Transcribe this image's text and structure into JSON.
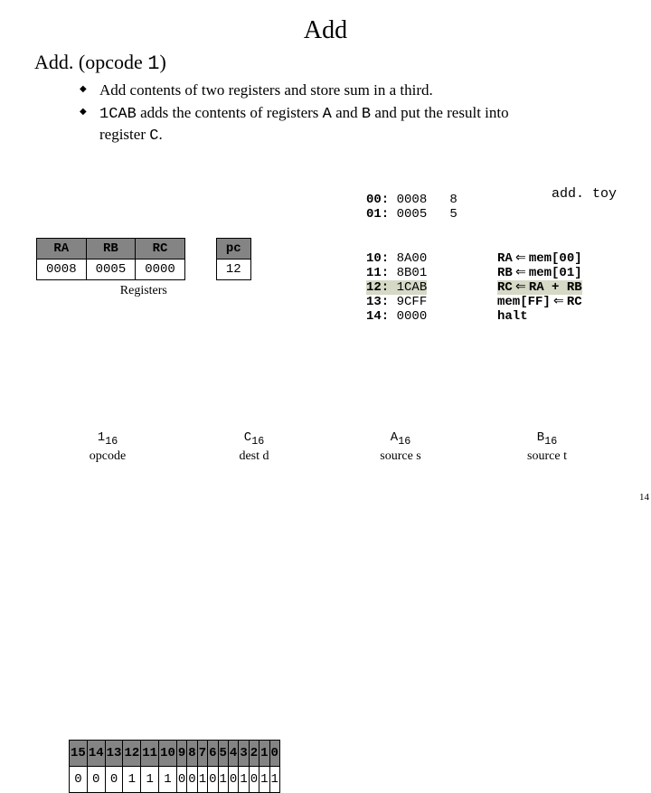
{
  "title": "Add",
  "subtitle_plain_prefix": "Add.  (opcode ",
  "subtitle_plain_suffix": ")",
  "subtitle_code": "1",
  "bullet1": "Add contents of two registers and store sum in a third.",
  "bullet2_pre": "",
  "bullet2_code1": "1CAB",
  "bullet2_mid1": " adds the contents of registers ",
  "bullet2_code2": "A",
  "bullet2_mid2": " and ",
  "bullet2_code3": "B",
  "bullet2_mid3": "  and put the result into register ",
  "bullet2_code4": "C",
  "bullet2_suffix": ".",
  "float_label": "add. toy",
  "mem_top": [
    {
      "addr": "00:",
      "val": "0008",
      "note": "8"
    },
    {
      "addr": "01:",
      "val": "0005",
      "note": "5"
    }
  ],
  "mem_bot": [
    {
      "addr": "10:",
      "val": "8A00",
      "hl": false
    },
    {
      "addr": "11:",
      "val": "8B01",
      "hl": false
    },
    {
      "addr": "12:",
      "val": "1CAB",
      "hl": true
    },
    {
      "addr": "13:",
      "val": "9CFF",
      "hl": false
    },
    {
      "addr": "14:",
      "val": "0000",
      "hl": false
    }
  ],
  "regs": {
    "headers": [
      "RA",
      "RB",
      "RC"
    ],
    "values": [
      "0008",
      "0005",
      "0000"
    ],
    "pc_header": "pc",
    "pc_value": "12",
    "caption": "Registers"
  },
  "mapping": [
    {
      "lhs": "RA",
      "rhs": "mem[00]",
      "hl": false
    },
    {
      "lhs": "RB",
      "rhs": "mem[01]",
      "hl": false
    },
    {
      "lhs": "RC",
      "rhs": "RA + RB",
      "hl": true
    },
    {
      "lhs": "mem[FF]",
      "rhs": "RC",
      "hl": false
    },
    {
      "lhs": "halt",
      "rhs": "",
      "hl": false
    }
  ],
  "bits": {
    "index": [
      "15",
      "14",
      "13",
      "12",
      "11",
      "10",
      "9",
      "8",
      "7",
      "6",
      "5",
      "4",
      "3",
      "2",
      "1",
      "0"
    ],
    "value": [
      "0",
      "0",
      "0",
      "1",
      "1",
      "1",
      "0",
      "0",
      "1",
      "0",
      "1",
      "0",
      "1",
      "0",
      "1",
      "1"
    ]
  },
  "groups": [
    {
      "hex": "1",
      "sub": "16",
      "label": "opcode"
    },
    {
      "hex": "C",
      "sub": "16",
      "label": "dest d"
    },
    {
      "hex": "A",
      "sub": "16",
      "label": "source s"
    },
    {
      "hex": "B",
      "sub": "16",
      "label": "source t"
    }
  ],
  "pagenum": "14",
  "colors": {
    "hdr_bg": "#848484",
    "hl_bg": "#d5d9c6"
  }
}
